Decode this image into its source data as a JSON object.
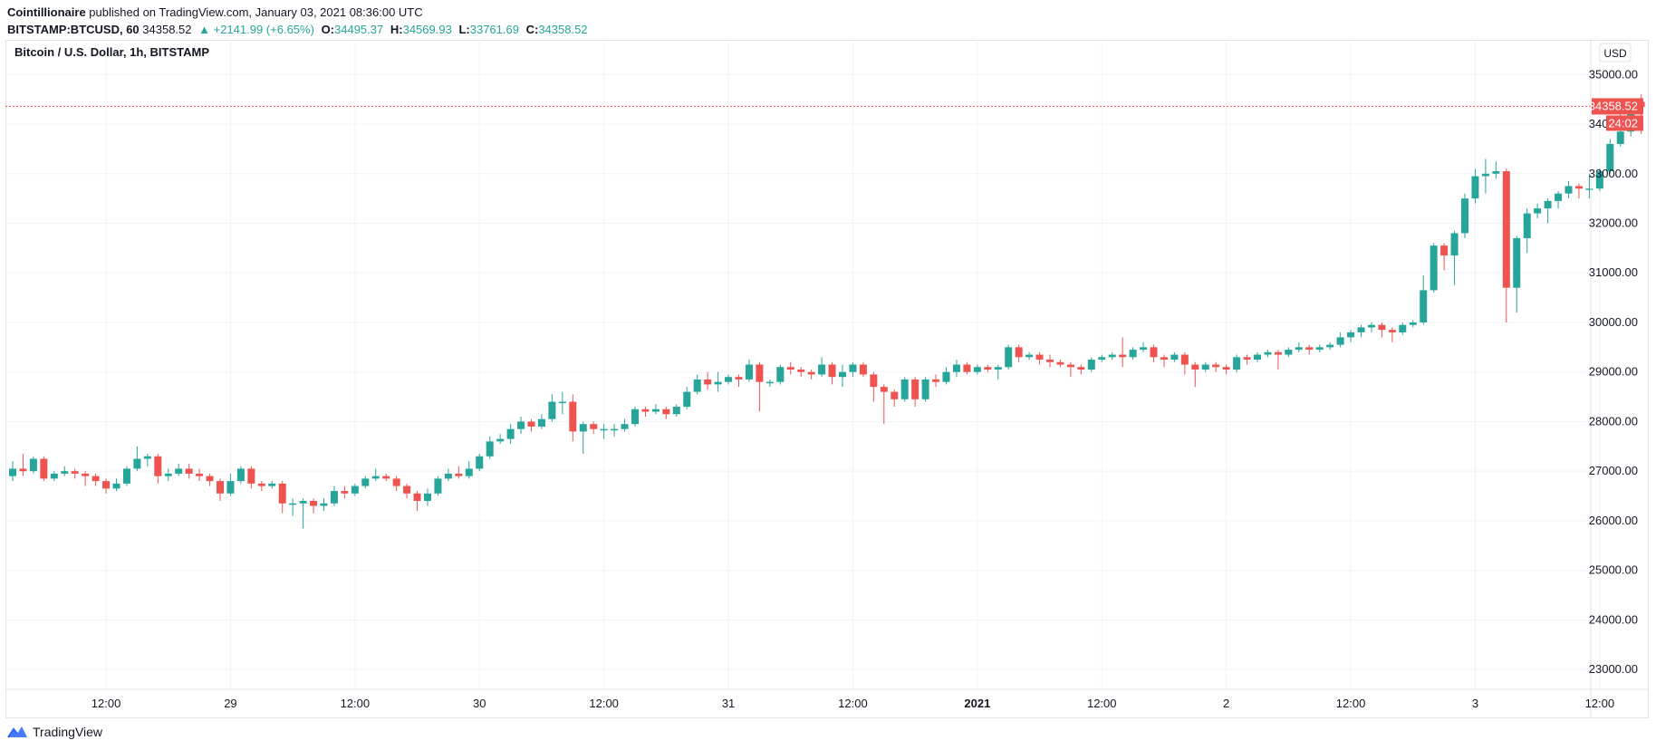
{
  "header": {
    "publisher": "Cointillionaire",
    "published_text": "published on TradingView.com, January 03, 2021 08:36:00 UTC",
    "symbol": "BITSTAMP:BTCUSD, 60",
    "last": "34358.52",
    "change": "▲ +2141.99 (+6.65%)",
    "o_label": "O:",
    "o_value": "34495.37",
    "h_label": "H:",
    "h_value": "34569.93",
    "l_label": "L:",
    "l_value": "33761.69",
    "c_label": "C:",
    "c_value": "34358.52"
  },
  "chart_title": "Bitcoin / U.S. Dollar, 1h, BITSTAMP",
  "currency_button": "USD",
  "footer": {
    "brand": "TradingView"
  },
  "colors": {
    "up": "#26a69a",
    "down": "#ef5350",
    "grid": "#f0f3fa",
    "text": "#131722"
  },
  "chart_data": {
    "type": "candlestick",
    "title": "Bitcoin / U.S. Dollar, 1h, BITSTAMP",
    "ylim": [
      22600,
      35700
    ],
    "y_ticks": [
      "35000.00",
      "34000.00",
      "33000.00",
      "32000.00",
      "31000.00",
      "30000.00",
      "29000.00",
      "28000.00",
      "27000.00",
      "26000.00",
      "25000.00",
      "24000.00",
      "23000.00"
    ],
    "x_ticks": [
      {
        "label": "12:00",
        "h": 9
      },
      {
        "label": "29",
        "h": 21
      },
      {
        "label": "12:00",
        "h": 33
      },
      {
        "label": "30",
        "h": 45
      },
      {
        "label": "12:00",
        "h": 57
      },
      {
        "label": "31",
        "h": 69
      },
      {
        "label": "12:00",
        "h": 81
      },
      {
        "label": "2021",
        "h": 93,
        "bold": true
      },
      {
        "label": "12:00",
        "h": 105
      },
      {
        "label": "2",
        "h": 117
      },
      {
        "label": "12:00",
        "h": 129
      },
      {
        "label": "3",
        "h": 141
      },
      {
        "label": "12:00",
        "h": 153
      }
    ],
    "last_price": 34358.52,
    "last_price_label": "34358.52",
    "countdown": "24:02",
    "candles": [
      [
        26900,
        27050,
        26800,
        27200
      ],
      [
        27050,
        27000,
        26900,
        27350
      ],
      [
        27000,
        27250,
        26950,
        27300
      ],
      [
        27250,
        26850,
        26800,
        27300
      ],
      [
        26850,
        26950,
        26800,
        27000
      ],
      [
        26950,
        27000,
        26900,
        27100
      ],
      [
        27000,
        26950,
        26850,
        27050
      ],
      [
        26950,
        26900,
        26700,
        27000
      ],
      [
        26900,
        26800,
        26700,
        26950
      ],
      [
        26800,
        26650,
        26550,
        26850
      ],
      [
        26650,
        26750,
        26600,
        26850
      ],
      [
        26750,
        27050,
        26700,
        27100
      ],
      [
        27050,
        27250,
        27000,
        27500
      ],
      [
        27250,
        27300,
        27100,
        27350
      ],
      [
        27300,
        26900,
        26750,
        27350
      ],
      [
        26900,
        26950,
        26800,
        27050
      ],
      [
        26950,
        27050,
        26900,
        27150
      ],
      [
        27050,
        26950,
        26850,
        27150
      ],
      [
        26950,
        26900,
        26800,
        27050
      ],
      [
        26900,
        26800,
        26700,
        26950
      ],
      [
        26800,
        26550,
        26400,
        26850
      ],
      [
        26550,
        26800,
        26500,
        26950
      ],
      [
        26800,
        27050,
        26750,
        27100
      ],
      [
        27050,
        26750,
        26650,
        27100
      ],
      [
        26750,
        26700,
        26600,
        26800
      ],
      [
        26700,
        26750,
        26650,
        26800
      ],
      [
        26750,
        26350,
        26150,
        26800
      ],
      [
        26350,
        26350,
        26100,
        26450
      ],
      [
        26350,
        26400,
        25850,
        26450
      ],
      [
        26400,
        26300,
        26150,
        26450
      ],
      [
        26300,
        26350,
        26200,
        26450
      ],
      [
        26350,
        26600,
        26300,
        26700
      ],
      [
        26600,
        26550,
        26450,
        26700
      ],
      [
        26550,
        26700,
        26500,
        26750
      ],
      [
        26700,
        26850,
        26650,
        26900
      ],
      [
        26850,
        26900,
        26800,
        27050
      ],
      [
        26900,
        26850,
        26800,
        26950
      ],
      [
        26850,
        26700,
        26600,
        26900
      ],
      [
        26700,
        26550,
        26450,
        26750
      ],
      [
        26550,
        26400,
        26200,
        26600
      ],
      [
        26400,
        26550,
        26300,
        26650
      ],
      [
        26550,
        26850,
        26500,
        26900
      ],
      [
        26850,
        26950,
        26800,
        27050
      ],
      [
        26950,
        26900,
        26850,
        27100
      ],
      [
        26900,
        27050,
        26850,
        27200
      ],
      [
        27050,
        27300,
        27000,
        27350
      ],
      [
        27300,
        27600,
        27250,
        27700
      ],
      [
        27600,
        27650,
        27550,
        27750
      ],
      [
        27650,
        27850,
        27550,
        27950
      ],
      [
        27850,
        28000,
        27750,
        28100
      ],
      [
        28000,
        27900,
        27800,
        28050
      ],
      [
        27900,
        28050,
        27850,
        28150
      ],
      [
        28050,
        28400,
        28000,
        28550
      ],
      [
        28400,
        28400,
        28150,
        28600
      ],
      [
        28400,
        27800,
        27600,
        28550
      ],
      [
        27800,
        27950,
        27350,
        28000
      ],
      [
        27950,
        27850,
        27750,
        28000
      ],
      [
        27850,
        27850,
        27650,
        27950
      ],
      [
        27850,
        27850,
        27700,
        27950
      ],
      [
        27850,
        27950,
        27800,
        28050
      ],
      [
        27950,
        28250,
        27900,
        28300
      ],
      [
        28250,
        28200,
        28100,
        28300
      ],
      [
        28200,
        28250,
        28150,
        28350
      ],
      [
        28250,
        28150,
        28050,
        28300
      ],
      [
        28150,
        28300,
        28100,
        28350
      ],
      [
        28300,
        28600,
        28250,
        28700
      ],
      [
        28600,
        28850,
        28550,
        28950
      ],
      [
        28850,
        28750,
        28650,
        29000
      ],
      [
        28750,
        28800,
        28600,
        29000
      ],
      [
        28800,
        28900,
        28750,
        28950
      ],
      [
        28900,
        28850,
        28700,
        28950
      ],
      [
        28850,
        29150,
        28800,
        29250
      ],
      [
        29150,
        28800,
        28200,
        29200
      ],
      [
        28800,
        28800,
        28700,
        28850
      ],
      [
        28800,
        29100,
        28750,
        29150
      ],
      [
        29100,
        29050,
        28950,
        29200
      ],
      [
        29050,
        29000,
        28900,
        29100
      ],
      [
        29000,
        28950,
        28850,
        29050
      ],
      [
        28950,
        29150,
        28900,
        29300
      ],
      [
        29150,
        28900,
        28750,
        29200
      ],
      [
        28900,
        29000,
        28700,
        29150
      ],
      [
        29000,
        29150,
        28900,
        29200
      ],
      [
        29150,
        28950,
        28900,
        29200
      ],
      [
        28950,
        28700,
        28400,
        29000
      ],
      [
        28700,
        28600,
        27950,
        28750
      ],
      [
        28600,
        28450,
        28300,
        28650
      ],
      [
        28450,
        28850,
        28400,
        28900
      ],
      [
        28850,
        28450,
        28300,
        28900
      ],
      [
        28450,
        28850,
        28400,
        28900
      ],
      [
        28850,
        28800,
        28700,
        28950
      ],
      [
        28800,
        29000,
        28750,
        29100
      ],
      [
        29000,
        29150,
        28900,
        29250
      ],
      [
        29150,
        29000,
        28950,
        29200
      ],
      [
        29000,
        29100,
        28950,
        29150
      ],
      [
        29100,
        29050,
        29000,
        29150
      ],
      [
        29050,
        29100,
        28850,
        29150
      ],
      [
        29100,
        29500,
        29050,
        29550
      ],
      [
        29500,
        29300,
        29200,
        29550
      ],
      [
        29300,
        29350,
        29250,
        29400
      ],
      [
        29350,
        29250,
        29150,
        29400
      ],
      [
        29250,
        29200,
        29100,
        29350
      ],
      [
        29200,
        29150,
        29100,
        29250
      ],
      [
        29150,
        29100,
        28900,
        29200
      ],
      [
        29100,
        29050,
        28950,
        29150
      ],
      [
        29050,
        29250,
        29000,
        29300
      ],
      [
        29250,
        29300,
        29200,
        29350
      ],
      [
        29300,
        29350,
        29250,
        29400
      ],
      [
        29350,
        29300,
        29100,
        29700
      ],
      [
        29300,
        29450,
        29250,
        29500
      ],
      [
        29450,
        29500,
        29400,
        29600
      ],
      [
        29500,
        29300,
        29200,
        29550
      ],
      [
        29300,
        29250,
        29100,
        29350
      ],
      [
        29250,
        29350,
        29200,
        29400
      ],
      [
        29350,
        29150,
        28950,
        29400
      ],
      [
        29150,
        29050,
        28700,
        29200
      ],
      [
        29050,
        29150,
        29000,
        29200
      ],
      [
        29150,
        29100,
        29000,
        29200
      ],
      [
        29100,
        29050,
        28950,
        29150
      ],
      [
        29050,
        29300,
        29000,
        29350
      ],
      [
        29300,
        29250,
        29150,
        29350
      ],
      [
        29250,
        29350,
        29200,
        29400
      ],
      [
        29350,
        29400,
        29300,
        29450
      ],
      [
        29400,
        29350,
        29050,
        29450
      ],
      [
        29350,
        29450,
        29300,
        29500
      ],
      [
        29450,
        29500,
        29400,
        29600
      ],
      [
        29500,
        29450,
        29350,
        29550
      ],
      [
        29450,
        29500,
        29400,
        29550
      ],
      [
        29500,
        29550,
        29450,
        29600
      ],
      [
        29550,
        29700,
        29500,
        29800
      ],
      [
        29700,
        29800,
        29600,
        29850
      ],
      [
        29800,
        29900,
        29700,
        29950
      ],
      [
        29900,
        29950,
        29800,
        30000
      ],
      [
        29950,
        29850,
        29700,
        30000
      ],
      [
        29850,
        29800,
        29600,
        29900
      ],
      [
        29800,
        29950,
        29750,
        30000
      ],
      [
        29950,
        30000,
        29900,
        30050
      ],
      [
        30000,
        30650,
        29950,
        30950
      ],
      [
        30650,
        31550,
        30600,
        31600
      ],
      [
        31550,
        31350,
        31050,
        31600
      ],
      [
        31350,
        31800,
        30750,
        31850
      ],
      [
        31800,
        32500,
        31700,
        32600
      ],
      [
        32500,
        32950,
        32400,
        33100
      ],
      [
        32950,
        33000,
        32600,
        33300
      ],
      [
        33000,
        33050,
        32900,
        33250
      ],
      [
        33050,
        30700,
        30000,
        33100
      ],
      [
        30700,
        31700,
        30200,
        31750
      ],
      [
        31700,
        32200,
        31400,
        32300
      ],
      [
        32200,
        32300,
        32100,
        32400
      ],
      [
        32300,
        32450,
        32000,
        32500
      ],
      [
        32450,
        32600,
        32300,
        32650
      ],
      [
        32600,
        32750,
        32500,
        32850
      ],
      [
        32750,
        32700,
        32500,
        32800
      ],
      [
        32700,
        32700,
        32500,
        33000
      ],
      [
        32700,
        33050,
        32650,
        33100
      ],
      [
        33050,
        33600,
        33000,
        33700
      ],
      [
        33600,
        33850,
        33550,
        34200
      ],
      [
        33850,
        34350,
        33750,
        34500
      ],
      [
        34450,
        34350,
        33800,
        34600
      ]
    ]
  }
}
